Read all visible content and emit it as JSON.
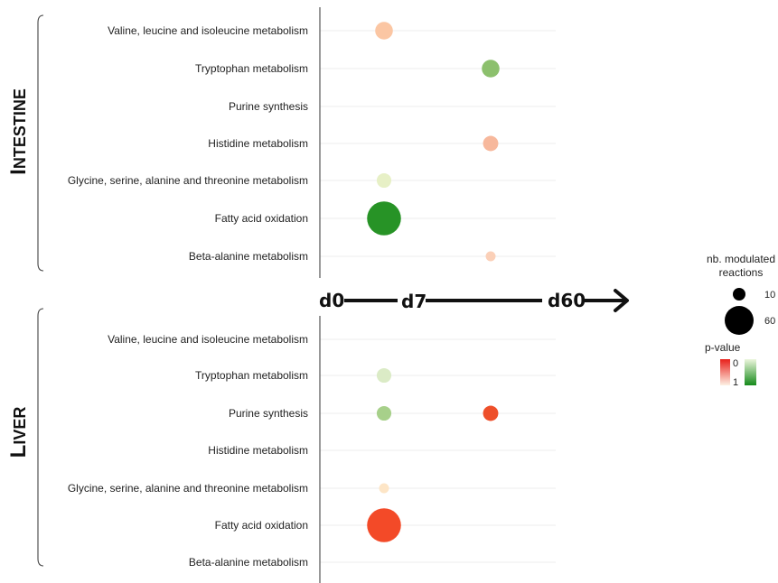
{
  "chart_data": {
    "type": "scatter",
    "time_points": [
      "d0",
      "d7",
      "d60"
    ],
    "pathways": [
      "Valine, leucine and isoleucine metabolism",
      "Tryptophan metabolism",
      "Purine synthesis",
      "Histidine metabolism",
      "Glycine, serine, alanine and threonine metabolism",
      "Fatty acid oxidation",
      "Beta-alanine metabolism"
    ],
    "panels": [
      {
        "title_cap": "I",
        "title_rest": "NTESTINE",
        "points": [
          {
            "pathway": 0,
            "time": "d7",
            "size": 12,
            "color": "#fbc6a3"
          },
          {
            "pathway": 1,
            "time": "d60",
            "size": 12,
            "color": "#8cc06d"
          },
          {
            "pathway": 3,
            "time": "d60",
            "size": 8,
            "color": "#f7b89c"
          },
          {
            "pathway": 4,
            "time": "d7",
            "size": 7,
            "color": "#e7f0c6"
          },
          {
            "pathway": 5,
            "time": "d7",
            "size": 60,
            "color": "#279326"
          },
          {
            "pathway": 6,
            "time": "d60",
            "size": 2,
            "color": "#fbd0b8"
          }
        ]
      },
      {
        "title_cap": "L",
        "title_rest": "IVER",
        "points": [
          {
            "pathway": 1,
            "time": "d7",
            "size": 7,
            "color": "#dbebc6"
          },
          {
            "pathway": 2,
            "time": "d7",
            "size": 7,
            "color": "#a7d08a"
          },
          {
            "pathway": 2,
            "time": "d60",
            "size": 8,
            "color": "#ee4f2a"
          },
          {
            "pathway": 4,
            "time": "d7",
            "size": 2,
            "color": "#fde5c6"
          },
          {
            "pathway": 5,
            "time": "d7",
            "size": 60,
            "color": "#f34a28"
          }
        ]
      }
    ],
    "legend": {
      "size_title": "nb. modulated reactions",
      "size_title_line1": "nb. modulated",
      "size_title_line2": "reactions",
      "size_entries": [
        {
          "label": "10",
          "size": 10
        },
        {
          "label": "60",
          "size": 60
        }
      ],
      "color_title": "p-value",
      "color_labels": [
        "0",
        "1"
      ],
      "up_colors": [
        "#e8201b",
        "#fdf1e4"
      ],
      "down_colors": [
        "#ecf6dc",
        "#168a1b"
      ]
    }
  }
}
